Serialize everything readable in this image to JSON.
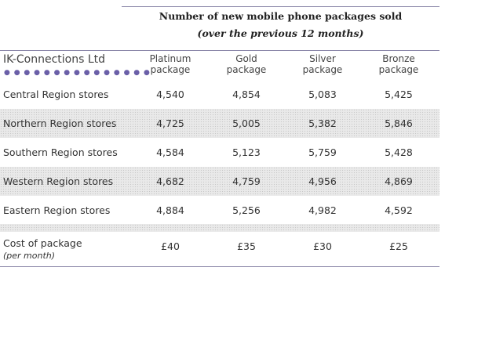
{
  "title": "Number of new mobile phone packages sold",
  "subtitle": "(over the previous 12 months)",
  "company": "IK-Connections Ltd",
  "columns": [
    {
      "line1": "Platinum",
      "line2": "package"
    },
    {
      "line1": "Gold",
      "line2": "package"
    },
    {
      "line1": "Silver",
      "line2": "package"
    },
    {
      "line1": "Bronze",
      "line2": "package"
    }
  ],
  "rows": [
    {
      "label": "Central Region stores",
      "values": [
        "4,540",
        "4,854",
        "5,083",
        "5,425"
      ]
    },
    {
      "label": "Northern Region stores",
      "values": [
        "4,725",
        "5,005",
        "5,382",
        "5,846"
      ]
    },
    {
      "label": "Southern Region stores",
      "values": [
        "4,584",
        "5,123",
        "5,759",
        "5,428"
      ]
    },
    {
      "label": "Western Region stores",
      "values": [
        "4,682",
        "4,759",
        "4,956",
        "4,869"
      ]
    },
    {
      "label": "Eastern Region stores",
      "values": [
        "4,884",
        "5,256",
        "4,982",
        "4,592"
      ]
    }
  ],
  "cost": {
    "label": "Cost of package",
    "sublabel": "(per month)",
    "values": [
      "£40",
      "£35",
      "£30",
      "£25"
    ]
  }
}
